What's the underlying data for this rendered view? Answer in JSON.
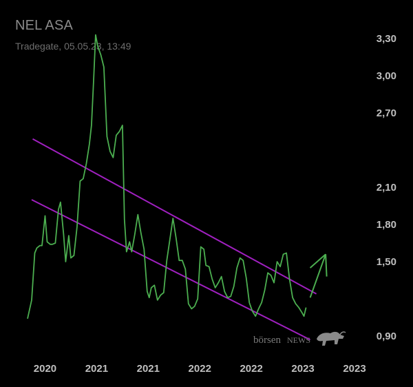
{
  "header": {
    "title": "NEL ASA",
    "subtitle": "Tradegate, 05.05.23, 13:49"
  },
  "watermark": {
    "text_left": "börsen",
    "text_right": "NEWS",
    "logo_icon": "bull-icon"
  },
  "colors": {
    "background": "#000000",
    "price_line": "#4caf50",
    "channel_line": "#a020c0",
    "arrow": "#4caf50",
    "text_main": "#bfbfbf",
    "text_title": "#8a8a8a"
  },
  "chart_data": {
    "type": "line",
    "title": "NEL ASA",
    "subtitle": "Tradegate, 05.05.23, 13:49",
    "x_ticks": [
      "2020",
      "2021",
      "2021",
      "2022",
      "2022",
      "2023",
      "2023"
    ],
    "x_tick_positions": [
      2020.55,
      2021.05,
      2021.55,
      2022.05,
      2022.55,
      2023.05,
      2023.55
    ],
    "y_ticks": [
      3.3,
      3.0,
      2.7,
      2.1,
      1.8,
      1.5,
      0.9
    ],
    "y_tick_labels": [
      "3,30",
      "3,00",
      "2,70",
      "2,10",
      "1,80",
      "1,50",
      "0,90"
    ],
    "ylim": [
      0.84,
      3.34
    ],
    "xlim": [
      2020.3,
      2023.65
    ],
    "grid": false,
    "legend": "none",
    "series": [
      {
        "values": [
          [
            2020.38,
            1.04
          ],
          [
            2020.42,
            1.19
          ],
          [
            2020.45,
            1.57
          ],
          [
            2020.47,
            1.61
          ],
          [
            2020.5,
            1.63
          ],
          [
            2020.52,
            1.63
          ],
          [
            2020.55,
            1.87
          ],
          [
            2020.57,
            1.66
          ],
          [
            2020.6,
            1.64
          ],
          [
            2020.62,
            1.64
          ],
          [
            2020.65,
            1.65
          ],
          [
            2020.68,
            1.92
          ],
          [
            2020.7,
            1.98
          ],
          [
            2020.73,
            1.72
          ],
          [
            2020.75,
            1.5
          ],
          [
            2020.78,
            1.71
          ],
          [
            2020.8,
            1.53
          ],
          [
            2020.83,
            1.55
          ],
          [
            2020.86,
            1.78
          ],
          [
            2020.89,
            2.15
          ],
          [
            2020.92,
            2.17
          ],
          [
            2020.95,
            2.29
          ],
          [
            2020.98,
            2.45
          ],
          [
            2021.0,
            2.6
          ],
          [
            2021.02,
            2.95
          ],
          [
            2021.04,
            3.33
          ],
          [
            2021.06,
            3.24
          ],
          [
            2021.09,
            3.17
          ],
          [
            2021.12,
            3.07
          ],
          [
            2021.15,
            2.51
          ],
          [
            2021.18,
            2.39
          ],
          [
            2021.21,
            2.34
          ],
          [
            2021.24,
            2.52
          ],
          [
            2021.27,
            2.55
          ],
          [
            2021.3,
            2.6
          ],
          [
            2021.32,
            1.84
          ],
          [
            2021.34,
            1.58
          ],
          [
            2021.37,
            1.66
          ],
          [
            2021.39,
            1.58
          ],
          [
            2021.42,
            1.72
          ],
          [
            2021.45,
            1.88
          ],
          [
            2021.48,
            1.73
          ],
          [
            2021.51,
            1.6
          ],
          [
            2021.54,
            1.26
          ],
          [
            2021.56,
            1.21
          ],
          [
            2021.58,
            1.29
          ],
          [
            2021.61,
            1.31
          ],
          [
            2021.64,
            1.19
          ],
          [
            2021.67,
            1.23
          ],
          [
            2021.7,
            1.25
          ],
          [
            2021.73,
            1.51
          ],
          [
            2021.76,
            1.68
          ],
          [
            2021.79,
            1.85
          ],
          [
            2021.82,
            1.69
          ],
          [
            2021.85,
            1.51
          ],
          [
            2021.88,
            1.51
          ],
          [
            2021.91,
            1.44
          ],
          [
            2021.94,
            1.16
          ],
          [
            2021.97,
            1.12
          ],
          [
            2022.0,
            1.14
          ],
          [
            2022.03,
            1.2
          ],
          [
            2022.06,
            1.62
          ],
          [
            2022.09,
            1.6
          ],
          [
            2022.11,
            1.47
          ],
          [
            2022.14,
            1.46
          ],
          [
            2022.17,
            1.36
          ],
          [
            2022.2,
            1.29
          ],
          [
            2022.23,
            1.33
          ],
          [
            2022.26,
            1.38
          ],
          [
            2022.29,
            1.26
          ],
          [
            2022.32,
            1.21
          ],
          [
            2022.35,
            1.22
          ],
          [
            2022.38,
            1.3
          ],
          [
            2022.41,
            1.45
          ],
          [
            2022.44,
            1.53
          ],
          [
            2022.47,
            1.51
          ],
          [
            2022.5,
            1.37
          ],
          [
            2022.53,
            1.17
          ],
          [
            2022.56,
            1.1
          ],
          [
            2022.59,
            1.06
          ],
          [
            2022.62,
            1.12
          ],
          [
            2022.65,
            1.17
          ],
          [
            2022.68,
            1.27
          ],
          [
            2022.71,
            1.41
          ],
          [
            2022.74,
            1.39
          ],
          [
            2022.77,
            1.33
          ],
          [
            2022.8,
            1.5
          ],
          [
            2022.83,
            1.46
          ],
          [
            2022.86,
            1.56
          ],
          [
            2022.89,
            1.57
          ],
          [
            2022.92,
            1.36
          ],
          [
            2022.95,
            1.21
          ],
          [
            2022.98,
            1.16
          ],
          [
            2023.01,
            1.13
          ],
          [
            2023.04,
            1.09
          ],
          [
            2023.06,
            1.06
          ],
          [
            2023.08,
            1.13
          ]
        ]
      }
    ],
    "channel_lines": [
      {
        "from": [
          2020.43,
          2.49
        ],
        "to": [
          2023.18,
          1.24
        ]
      },
      {
        "from": [
          2020.42,
          2.0
        ],
        "to": [
          2023.12,
          0.87
        ]
      }
    ],
    "arrow": {
      "points": [
        [
          2023.12,
          1.21
        ],
        [
          2023.27,
          1.56
        ],
        [
          2023.28,
          1.38
        ]
      ],
      "tail": [
        2023.12,
        1.45
      ]
    }
  }
}
